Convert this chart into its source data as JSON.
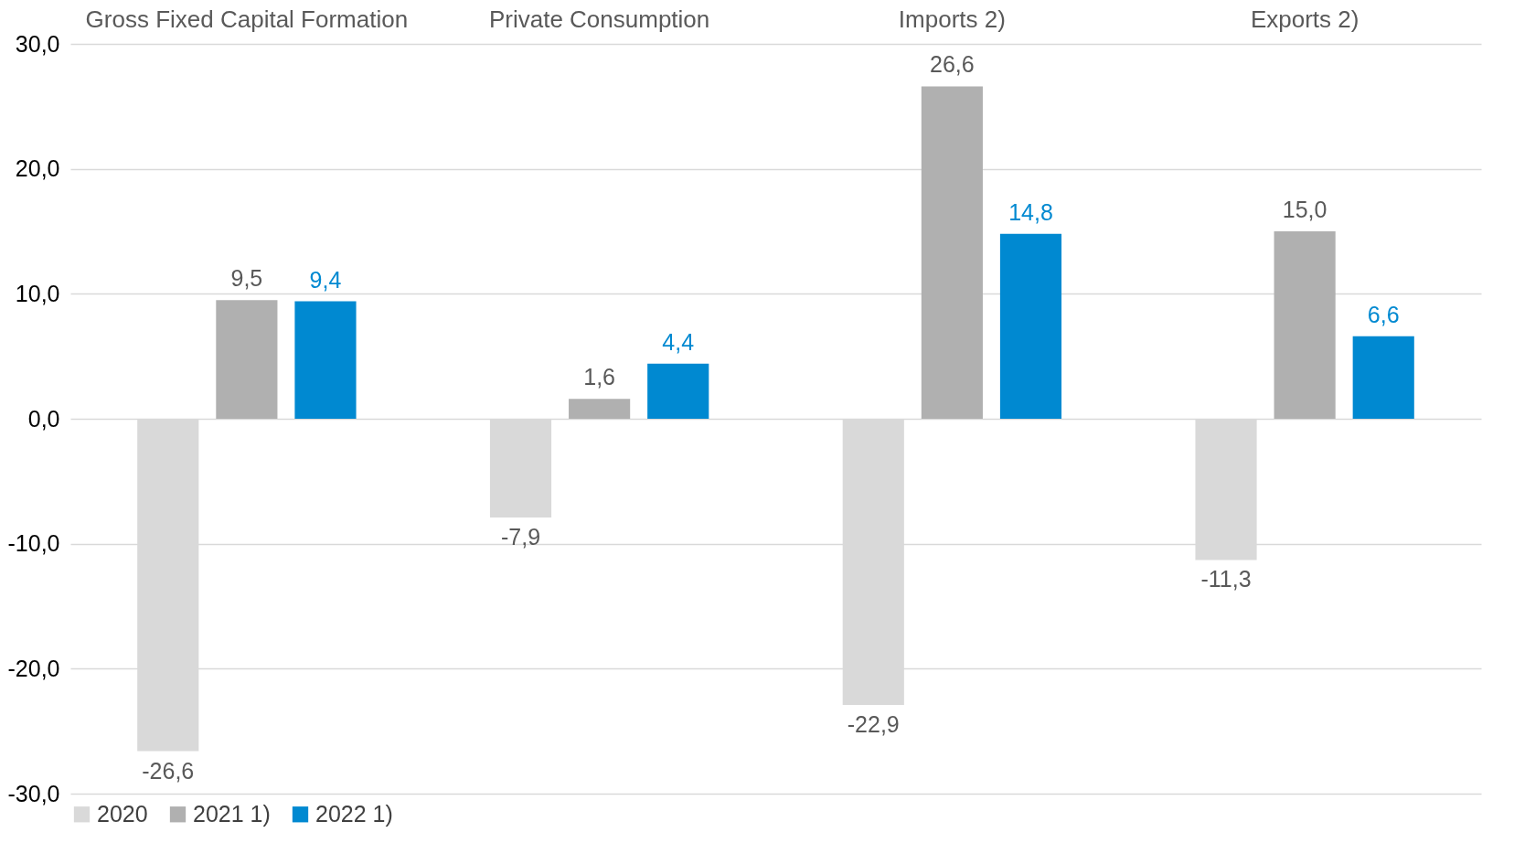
{
  "chart_data": {
    "type": "bar",
    "categories": [
      "Gross Fixed Capital Formation",
      "Private Consumption",
      "Imports 2)",
      "Exports 2)"
    ],
    "series": [
      {
        "name": "2020",
        "color": "#d9d9d9",
        "values": [
          -26.6,
          -7.9,
          -22.9,
          -11.3
        ],
        "value_labels": [
          "-26,6",
          "-7,9",
          "-22,9",
          "-11,3"
        ]
      },
      {
        "name": "2021 1)",
        "color": "#b0b0b0",
        "values": [
          9.5,
          1.6,
          26.6,
          15.0
        ],
        "value_labels": [
          "9,5",
          "1,6",
          "26,6",
          "15,0"
        ]
      },
      {
        "name": "2022 1)",
        "color": "#0089d1",
        "values": [
          9.4,
          4.4,
          14.8,
          6.6
        ],
        "value_labels": [
          "9,4",
          "4,4",
          "14,8",
          "6,6"
        ]
      }
    ],
    "ylim": [
      -30,
      30
    ],
    "yticks": [
      {
        "value": -30,
        "label": "-30,0"
      },
      {
        "value": -20,
        "label": "-20,0"
      },
      {
        "value": -10,
        "label": "-10,0"
      },
      {
        "value": 0,
        "label": "0,0"
      },
      {
        "value": 10,
        "label": "10,0"
      },
      {
        "value": 20,
        "label": "20,0"
      },
      {
        "value": 30,
        "label": "30,0"
      }
    ],
    "grid": "y",
    "legend": "bottom"
  }
}
